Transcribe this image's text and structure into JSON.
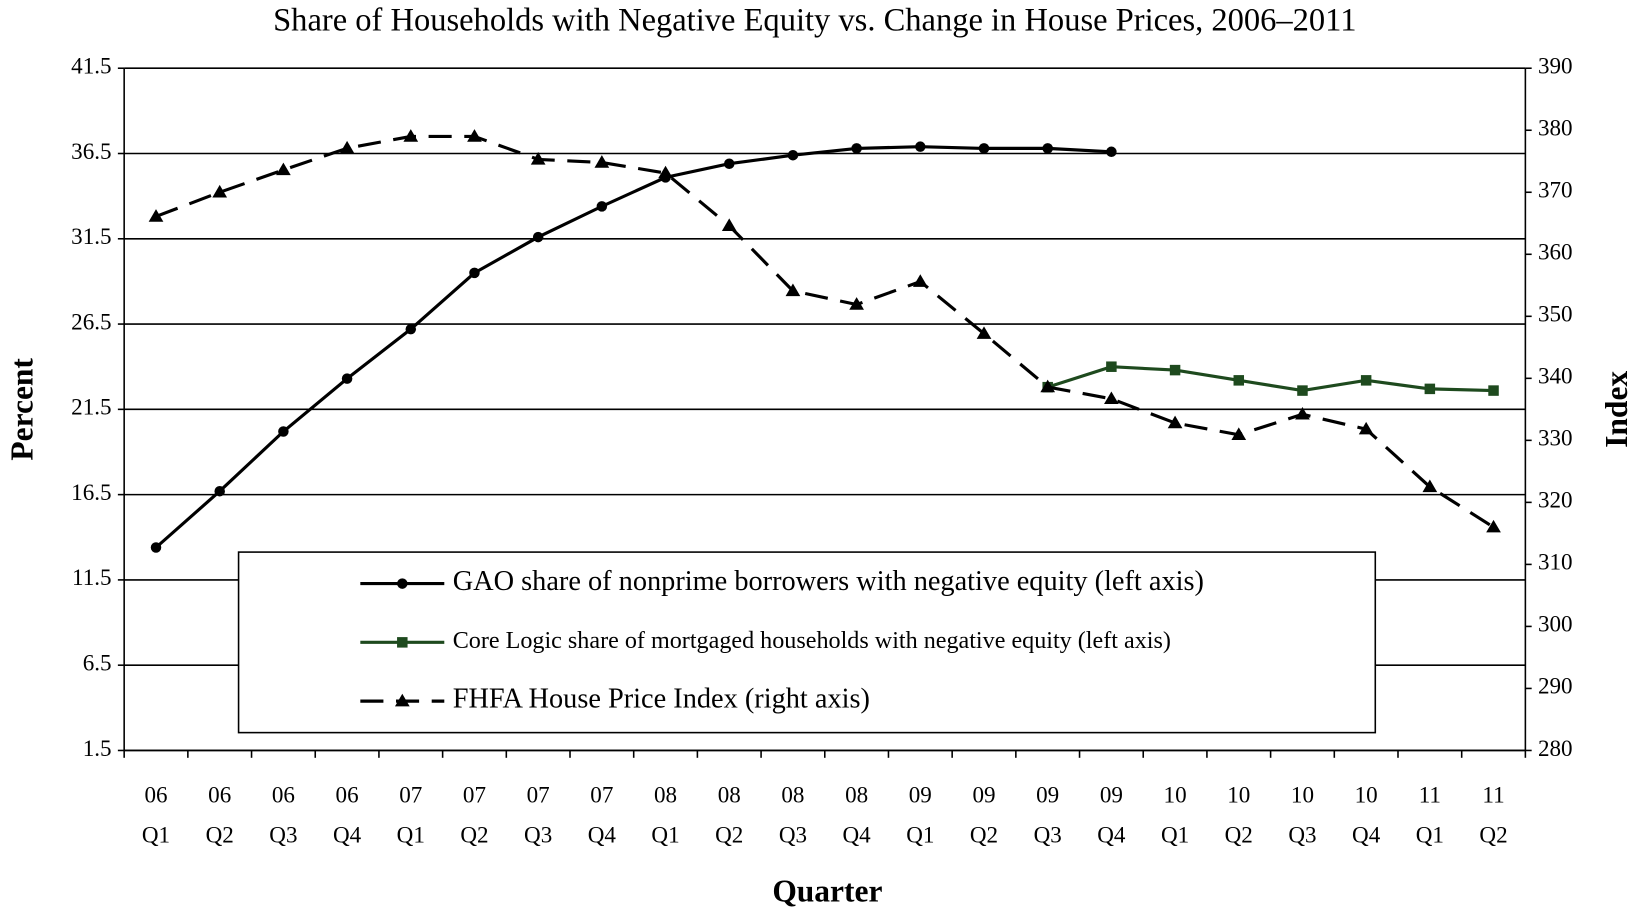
{
  "chart_data": {
    "type": "line",
    "title": "Share of Households with Negative Equity vs. Change in House Prices, 2006–2011",
    "xlabel": "Quarter",
    "ylabel": "Percent",
    "y2label": "Index",
    "categories": [
      "06 Q1",
      "06 Q2",
      "06 Q3",
      "06 Q4",
      "07 Q1",
      "07 Q2",
      "07 Q3",
      "07 Q4",
      "08 Q1",
      "08 Q2",
      "08 Q3",
      "08 Q4",
      "09 Q1",
      "09 Q2",
      "09 Q3",
      "09 Q4",
      "10 Q1",
      "10 Q2",
      "10 Q3",
      "10 Q4",
      "11 Q1",
      "11 Q2"
    ],
    "ylim": [
      1.5,
      41.5
    ],
    "yticks": [
      1.5,
      6.5,
      11.5,
      16.5,
      21.5,
      26.5,
      31.5,
      36.5,
      41.5
    ],
    "y2lim": [
      280,
      390
    ],
    "y2ticks": [
      280,
      290,
      300,
      310,
      320,
      330,
      340,
      350,
      360,
      370,
      380,
      390
    ],
    "grid": true,
    "legend": "bottom",
    "series": [
      {
        "name": "GAO share of nonprime borrowers with negative equity (left axis)",
        "color": "#000000",
        "marker": "circle",
        "dash": false,
        "values": [
          13.4,
          16.7,
          20.2,
          23.3,
          26.2,
          29.5,
          31.6,
          33.4,
          35.1,
          35.9,
          36.4,
          36.8,
          36.9,
          36.8,
          36.8,
          36.6,
          null,
          null,
          null,
          null,
          null,
          null
        ]
      },
      {
        "name": "Core Logic share of mortgaged households with negative equity (left axis)",
        "color": "#1e4a1e",
        "marker": "square",
        "dash": false,
        "values": [
          null,
          null,
          null,
          null,
          null,
          null,
          null,
          null,
          null,
          null,
          null,
          null,
          null,
          null,
          22.8,
          24.0,
          23.8,
          23.2,
          22.6,
          23.2,
          22.7,
          22.6
        ]
      },
      {
        "name": "FHFA House Price Index (right axis)",
        "color": "#000000",
        "marker": "triangle",
        "dash": true,
        "axis": "y2",
        "values": [
          366.1,
          370.0,
          373.6,
          377.1,
          379.0,
          379.0,
          375.3,
          374.8,
          373.1,
          364.6,
          354.1,
          351.9,
          355.6,
          347.2,
          338.6,
          336.7,
          332.8,
          330.9,
          334.2,
          331.8,
          322.5,
          316.0
        ]
      }
    ]
  }
}
